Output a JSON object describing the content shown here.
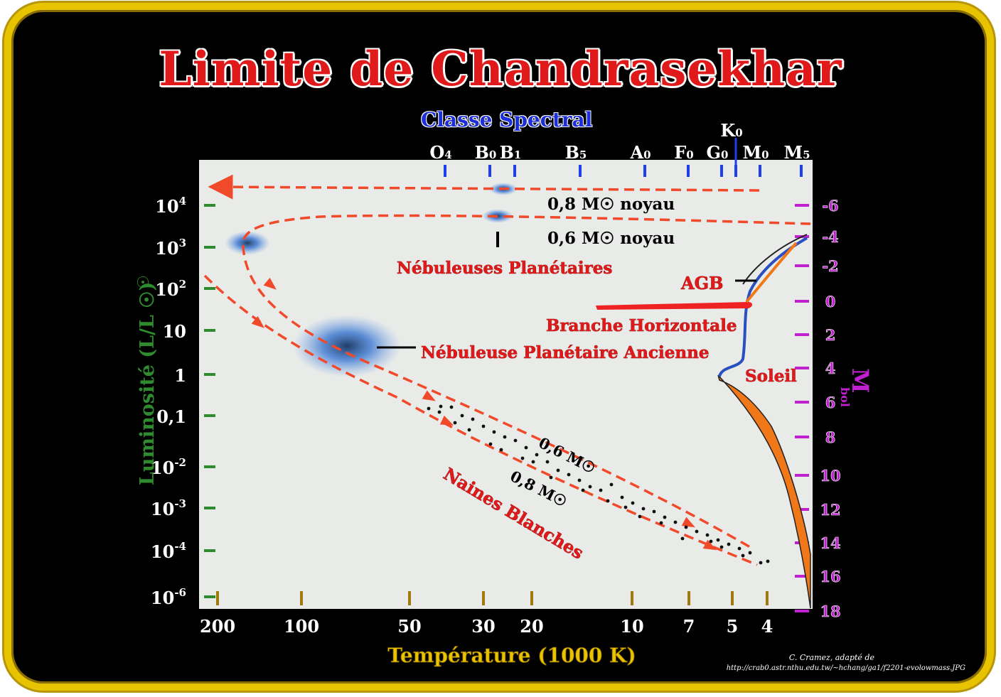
{
  "title": "Limite de Chandrasekhar",
  "spectral_header": "Classe Spectral",
  "credit": {
    "line1": "C. Cramez, adapté de",
    "line2": "http://crab0.astr.nthu.edu.tw/~hchang/ga1/f2201-evolowmass.JPG"
  },
  "colors": {
    "frame": "#e8c400",
    "title": "#e01a1a",
    "spectral": "#1c2fd8",
    "luminosity_axis": "#2e8b2e",
    "magnitude_axis": "#c020d0",
    "temperature_axis": "#e8c400",
    "tracks": "#f04a2a",
    "nebula": "#2f6fd0",
    "horizontal_branch": "#ee2222",
    "main_sequence": "#f07818",
    "giant_branch": "#2a4fc0"
  },
  "chart_data": {
    "type": "scatter",
    "title": "Limite de Chandrasekhar",
    "xlabel": "Température (1000 K)",
    "ylabel": "Luminosité (L/L ☉)",
    "y2label": "M",
    "y2label_sub": "bol",
    "x_scale": "log-reversed",
    "y_scale": "log",
    "x_ticks": [
      "200",
      "100",
      "50",
      "30",
      "20",
      "10",
      "7",
      "5",
      "4"
    ],
    "y_ticks": [
      {
        "base": "10",
        "exp": "4"
      },
      {
        "base": "10",
        "exp": "3"
      },
      {
        "base": "10",
        "exp": "2"
      },
      {
        "base": "10",
        "exp": ""
      },
      {
        "base": "1",
        "exp": ""
      },
      {
        "base": "0,1",
        "exp": ""
      },
      {
        "base": "10",
        "exp": "-2"
      },
      {
        "base": "10",
        "exp": "-3"
      },
      {
        "base": "10",
        "exp": "-4"
      },
      {
        "base": "10",
        "exp": "-6"
      }
    ],
    "y2_ticks": [
      "-6",
      "-4",
      "-2",
      "0",
      "2",
      "4",
      "6",
      "8",
      "10",
      "12",
      "14",
      "16",
      "18"
    ],
    "spectral_classes": [
      {
        "letter": "O",
        "sub": "4"
      },
      {
        "letter": "B",
        "sub": "0"
      },
      {
        "letter": "B",
        "sub": "1"
      },
      {
        "letter": "B",
        "sub": "5"
      },
      {
        "letter": "A",
        "sub": "0"
      },
      {
        "letter": "F",
        "sub": "0"
      },
      {
        "letter": "G",
        "sub": "0"
      },
      {
        "letter": "K",
        "sub": "0"
      },
      {
        "letter": "M",
        "sub": "0"
      },
      {
        "letter": "M",
        "sub": "5"
      }
    ],
    "labels": {
      "noyau_08": "0,8 M☉ noyau",
      "noyau_06": "0,6 M☉ noyau",
      "nebuleuses": "Nébuleuses Planétaires",
      "agb": "AGB",
      "branche": "Branche Horizontale",
      "nebuleuse_ancienne": "Nébuleuse Planétaire Ancienne",
      "soleil": "Soleil",
      "naines": "Naines Blanches",
      "track_06": "0,6 M☉",
      "track_08": "0,8 M☉"
    }
  }
}
